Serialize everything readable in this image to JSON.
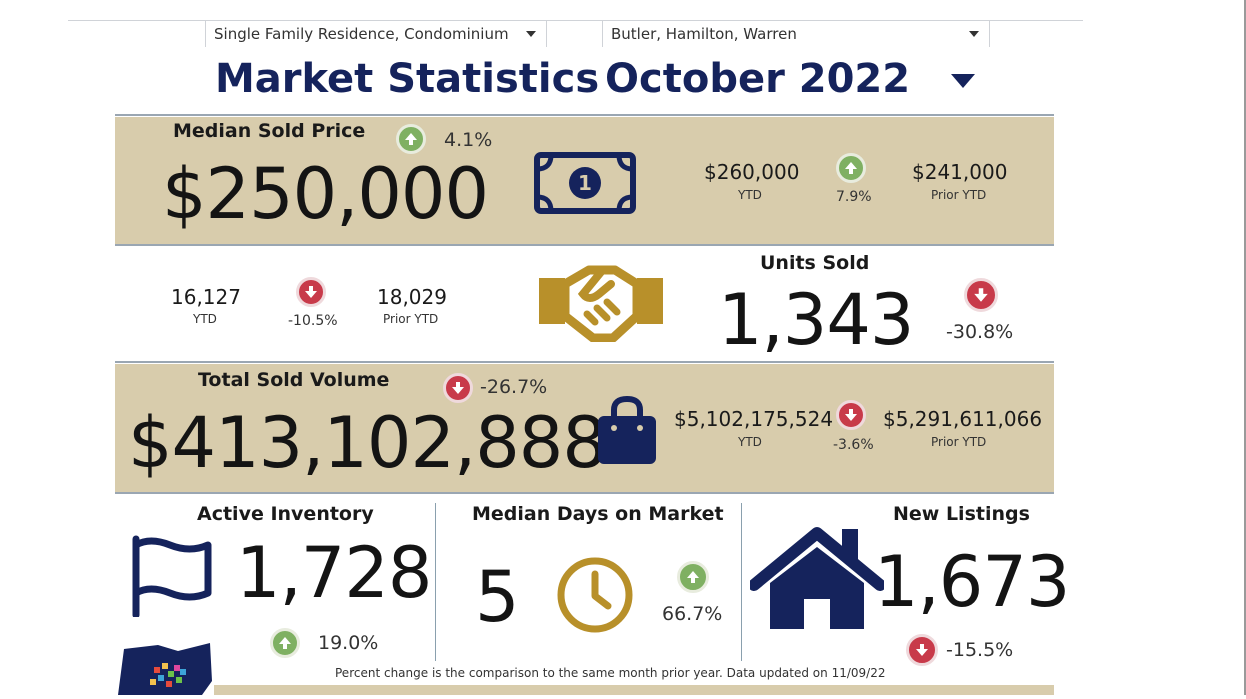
{
  "filters": {
    "property_type": "Single Family Residence, Condominium",
    "counties": "Butler, Hamilton, Warren"
  },
  "header": {
    "title": "Market Statistics",
    "period": "October 2022"
  },
  "median_sold_price": {
    "label": "Median Sold Price",
    "value": "$250,000",
    "change": "4.1%",
    "ytd": "$260,000",
    "ytd_label": "YTD",
    "ytd_change": "7.9%",
    "prior_ytd": "$241,000",
    "prior_ytd_label": "Prior YTD"
  },
  "units_sold": {
    "label": "Units Sold",
    "value": "1,343",
    "change": "-30.8%",
    "ytd": "16,127",
    "ytd_label": "YTD",
    "ytd_change": "-10.5%",
    "prior_ytd": "18,029",
    "prior_ytd_label": "Prior YTD"
  },
  "total_sold_volume": {
    "label": "Total Sold Volume",
    "value": "$413,102,888",
    "change": "-26.7%",
    "ytd": "$5,102,175,524",
    "ytd_label": "YTD",
    "ytd_change": "-3.6%",
    "prior_ytd": "$5,291,611,066",
    "prior_ytd_label": "Prior YTD"
  },
  "active_inventory": {
    "label": "Active Inventory",
    "value": "1,728",
    "change": "19.0%"
  },
  "median_days_on_market": {
    "label": "Median Days on Market",
    "value": "5",
    "change": "66.7%"
  },
  "new_listings": {
    "label": "New Listings",
    "value": "1,673",
    "change": "-15.5%"
  },
  "footnote": "Percent change is the comparison to the same month prior year. Data updated on 11/09/22",
  "colors": {
    "navy": "#15235c",
    "tan": "#d8ccac",
    "gold": "#b8902a",
    "up": "#7fb062",
    "down": "#c83a4a"
  }
}
